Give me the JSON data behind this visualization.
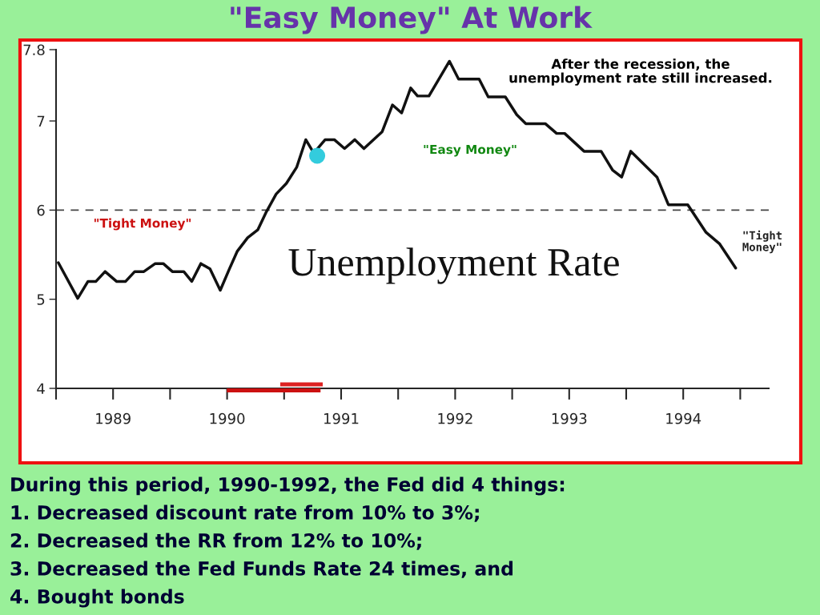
{
  "chart_data": {
    "type": "line",
    "title": "\"Easy Money\" At Work",
    "x": [
      1989.02,
      1989.19,
      1989.28,
      1989.35,
      1989.43,
      1989.53,
      1989.61,
      1989.69,
      1989.77,
      1989.87,
      1989.94,
      1990.02,
      1990.12,
      1990.19,
      1990.27,
      1990.35,
      1990.44,
      1990.52,
      1990.59,
      1990.68,
      1990.77,
      1990.84,
      1990.93,
      1991.02,
      1991.11,
      1991.19,
      1991.26,
      1991.36,
      1991.44,
      1991.53,
      1991.62,
      1991.7,
      1991.86,
      1991.95,
      1992.03,
      1992.11,
      1992.17,
      1992.27,
      1992.45,
      1992.53,
      1992.71,
      1992.79,
      1992.94,
      1993.04,
      1993.12,
      1993.29,
      1993.39,
      1993.46,
      1993.63,
      1993.78,
      1993.88,
      1993.96,
      1994.04,
      1994.27,
      1994.37,
      1994.54,
      1994.7,
      1994.82,
      1994.96
    ],
    "series": [
      {
        "color": "#111111",
        "marker": "none",
        "line_style": "solid",
        "values": [
          5.41,
          5.01,
          5.2,
          5.2,
          5.31,
          5.2,
          5.2,
          5.31,
          5.31,
          5.4,
          5.4,
          5.31,
          5.31,
          5.2,
          5.4,
          5.34,
          5.1,
          5.34,
          5.54,
          5.69,
          5.78,
          5.97,
          6.18,
          6.3,
          6.48,
          6.79,
          6.64,
          6.79,
          6.79,
          6.69,
          6.79,
          6.69,
          6.88,
          7.18,
          7.09,
          7.37,
          7.28,
          7.28,
          7.67,
          7.47,
          7.47,
          7.27,
          7.27,
          7.07,
          6.97,
          6.97,
          6.86,
          6.86,
          6.66,
          6.66,
          6.45,
          6.37,
          6.66,
          6.37,
          6.06,
          6.06,
          5.75,
          5.62,
          5.35
        ]
      },
      {
        "type": "scatter",
        "color": "#33ccdd",
        "marker": "circle",
        "x": [
          1991.29
        ],
        "values": [
          6.61
        ]
      }
    ],
    "xlim": [
      1989,
      1995.25
    ],
    "ylim": [
      4,
      7.8
    ],
    "xticks": [
      {
        "value": 1989,
        "label": null
      },
      {
        "value": 1989.5,
        "label": "1989"
      },
      {
        "value": 1990,
        "label": null
      },
      {
        "value": 1990.5,
        "label": "1990"
      },
      {
        "value": 1991,
        "label": null
      },
      {
        "value": 1991.5,
        "label": "1991"
      },
      {
        "value": 1992,
        "label": null
      },
      {
        "value": 1992.5,
        "label": "1992"
      },
      {
        "value": 1993,
        "label": null
      },
      {
        "value": 1993.5,
        "label": "1993"
      },
      {
        "value": 1994,
        "label": null
      },
      {
        "value": 1994.5,
        "label": "1994"
      },
      {
        "value": 1995,
        "label": null
      }
    ],
    "yticks": [
      4,
      5,
      6,
      7,
      7.8
    ],
    "ref_lines": [
      {
        "axis": "y",
        "value": 6,
        "label": null,
        "color": "#444444",
        "line_style": "dashed"
      }
    ],
    "annotations": [
      "After the recession, the\nunemployment rate still increased.",
      "\"Tight Money\"",
      "\"Easy Money\"",
      "\"Tight\nMoney\"",
      "Unemployment Rate",
      "During this period, 1990-1992, the Fed did 4 things:",
      "1. Decreased discount rate from 10% to 3%;",
      "2. Decreased the RR from 12% to 10%;",
      "3. Decreased the Fed Funds Rate 24 times, and",
      "4. Bought bonds"
    ],
    "grid": false,
    "legend": false
  }
}
